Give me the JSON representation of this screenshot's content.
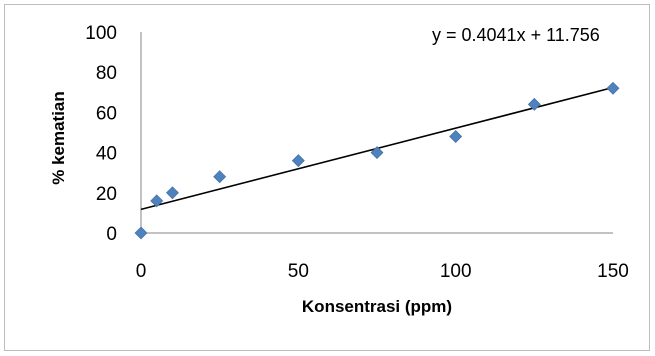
{
  "chart_data": {
    "type": "scatter",
    "title": "",
    "xlabel": "Konsentrasi (ppm)",
    "ylabel": "% kematian",
    "xlim": [
      0,
      150
    ],
    "ylim": [
      0,
      100
    ],
    "x_ticks": [
      "0",
      "50",
      "100",
      "150"
    ],
    "y_ticks": [
      "0",
      "20",
      "40",
      "60",
      "80",
      "100"
    ],
    "grid": false,
    "legend": "none",
    "series": [
      {
        "x": [
          0,
          5,
          10,
          25,
          50,
          75,
          100,
          125,
          150
        ],
        "y": [
          0,
          16,
          20,
          28,
          36,
          40,
          48,
          64,
          72
        ],
        "marker": "diamond",
        "color": "#4f81bd"
      }
    ],
    "trendline": {
      "type": "linear",
      "slope": 0.4041,
      "intercept": 11.756,
      "color": "#000000",
      "equation": "y = 0.4041x + 11.756"
    }
  }
}
